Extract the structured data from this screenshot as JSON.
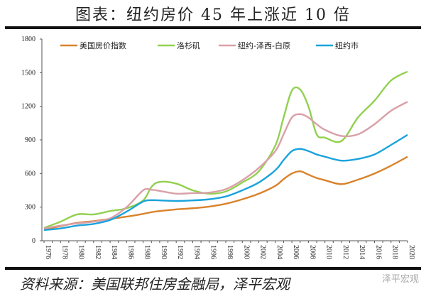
{
  "title": "图表：纽约房价 45 年上涨近 10 倍",
  "source": "资料来源：美国联邦住房金融局，泽平宏观",
  "watermark": "泽平宏观",
  "chart_data": {
    "type": "line",
    "title": "图表：纽约房价 45 年上涨近 10 倍",
    "xlabel": "",
    "ylabel": "",
    "xlim": [
      1976,
      2020
    ],
    "ylim": [
      0,
      1800
    ],
    "yticks": [
      0,
      300,
      600,
      900,
      1200,
      1500,
      1800
    ],
    "xticks": [
      1976,
      1978,
      1980,
      1982,
      1984,
      1986,
      1988,
      1990,
      1992,
      1994,
      1996,
      1998,
      2000,
      2002,
      2004,
      2006,
      2008,
      2010,
      2012,
      2014,
      2016,
      2018,
      2020
    ],
    "grid": false,
    "legend_position": "top",
    "x": [
      1976,
      1978,
      1980,
      1982,
      1984,
      1986,
      1988,
      1989,
      1990,
      1992,
      1994,
      1996,
      1998,
      2000,
      2002,
      2004,
      2005,
      2006,
      2007,
      2008,
      2009,
      2010,
      2012,
      2014,
      2016,
      2018,
      2020
    ],
    "series": [
      {
        "name": "美国房价指数",
        "color": "#d9822b",
        "values": [
          100,
          130,
          160,
          175,
          195,
          215,
          240,
          255,
          265,
          280,
          290,
          305,
          330,
          370,
          420,
          490,
          550,
          600,
          620,
          590,
          560,
          540,
          505,
          545,
          600,
          670,
          750
        ]
      },
      {
        "name": "洛杉矶",
        "color": "#92d050",
        "values": [
          115,
          170,
          235,
          235,
          265,
          290,
          360,
          480,
          525,
          510,
          450,
          420,
          440,
          520,
          620,
          850,
          1100,
          1340,
          1350,
          1200,
          950,
          920,
          890,
          1100,
          1250,
          1430,
          1510
        ]
      },
      {
        "name": "纽约-泽西-白原",
        "color": "#d9a0a8",
        "values": [
          110,
          135,
          155,
          170,
          200,
          300,
          450,
          455,
          445,
          420,
          425,
          430,
          460,
          540,
          650,
          800,
          950,
          1100,
          1130,
          1100,
          1040,
          990,
          935,
          950,
          1040,
          1160,
          1240
        ]
      },
      {
        "name": "纽约市",
        "color": "#1aa3dc",
        "values": [
          95,
          110,
          135,
          150,
          185,
          260,
          350,
          362,
          360,
          355,
          360,
          370,
          395,
          450,
          520,
          630,
          720,
          800,
          820,
          800,
          770,
          750,
          715,
          730,
          770,
          855,
          945
        ]
      }
    ]
  }
}
